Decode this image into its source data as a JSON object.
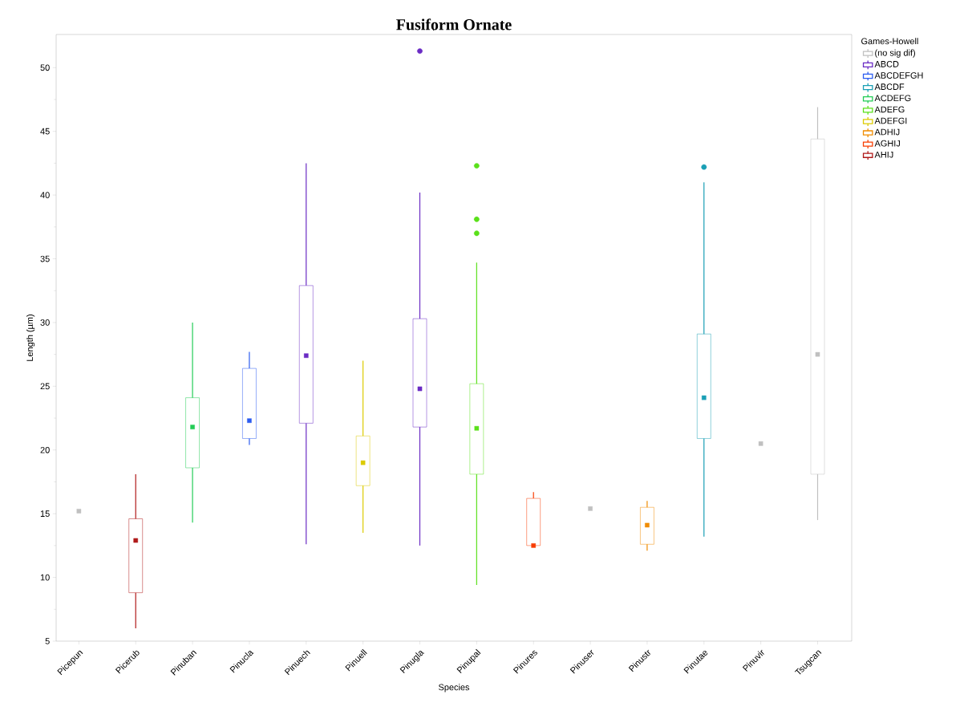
{
  "chart_data": {
    "type": "box",
    "title": "Fusiform Ornate",
    "xlabel": "Species",
    "ylabel": "Length (µm)",
    "legend_title": "Games-Howell",
    "legend": "right",
    "categories": [
      "Picepun",
      "Picerub",
      "Pinuban",
      "Pinucla",
      "Pinuech",
      "Pinuell",
      "Pinugla",
      "Pinupal",
      "Pinures",
      "Pinuser",
      "Pinustr",
      "Pinutae",
      "Pinuvir",
      "Tsugcan"
    ],
    "ylim": [
      5,
      52.6
    ],
    "yticks": [
      5,
      10,
      15,
      20,
      25,
      30,
      35,
      40,
      45,
      50
    ],
    "series": [
      {
        "name": "(no sig dif)",
        "color": "#c0c0c0",
        "boxes": [
          {
            "low": 15.2,
            "q1": 15.2,
            "median": 15.2,
            "q3": 15.2,
            "high": 15.2
          },
          null,
          null,
          null,
          null,
          null,
          null,
          null,
          null,
          {
            "low": 15.4,
            "q1": 15.4,
            "median": 15.4,
            "q3": 15.4,
            "high": 15.4
          },
          null,
          null,
          {
            "low": 20.5,
            "q1": 20.5,
            "median": 20.5,
            "q3": 20.5,
            "high": 20.5
          },
          {
            "low": 14.5,
            "q1": 18.1,
            "median": 27.5,
            "q3": 44.4,
            "high": 46.9
          }
        ]
      },
      {
        "name": "ABCD",
        "color": "#6a2bc4",
        "boxes": [
          null,
          null,
          null,
          null,
          {
            "low": 12.6,
            "q1": 22.1,
            "median": 27.4,
            "q3": 32.9,
            "high": 42.5
          },
          null,
          {
            "low": 12.5,
            "q1": 21.8,
            "median": 24.8,
            "q3": 30.3,
            "high": 40.2,
            "outliers": [
              51.3
            ]
          },
          null,
          null,
          null,
          null,
          null,
          null,
          null
        ]
      },
      {
        "name": "ABCDEFGH",
        "color": "#2b5cf0",
        "boxes": [
          null,
          null,
          null,
          {
            "low": 20.4,
            "q1": 20.9,
            "median": 22.3,
            "q3": 26.4,
            "high": 27.7
          },
          null,
          null,
          null,
          null,
          null,
          null,
          null,
          null,
          null,
          null
        ]
      },
      {
        "name": "ABCDF",
        "color": "#1a9fb5",
        "boxes": [
          null,
          null,
          null,
          null,
          null,
          null,
          null,
          null,
          null,
          null,
          null,
          {
            "low": 13.2,
            "q1": 20.9,
            "median": 24.1,
            "q3": 29.1,
            "high": 41.0,
            "outliers": [
              42.2
            ]
          },
          null,
          null
        ]
      },
      {
        "name": "ACDEFG",
        "color": "#22cc55",
        "boxes": [
          null,
          null,
          {
            "low": 14.3,
            "q1": 18.6,
            "median": 21.8,
            "q3": 24.1,
            "high": 30.0
          },
          null,
          null,
          null,
          null,
          null,
          null,
          null,
          null,
          null,
          null,
          null
        ]
      },
      {
        "name": "ADEFG",
        "color": "#5ae01a",
        "boxes": [
          null,
          null,
          null,
          null,
          null,
          null,
          null,
          {
            "low": 9.4,
            "q1": 18.1,
            "median": 21.7,
            "q3": 25.2,
            "high": 34.7,
            "outliers": [
              42.3,
              38.1,
              37.0
            ]
          },
          null,
          null,
          null,
          null,
          null,
          null
        ]
      },
      {
        "name": "ADEFGI",
        "color": "#dccb00",
        "boxes": [
          null,
          null,
          null,
          null,
          null,
          {
            "low": 13.5,
            "q1": 17.2,
            "median": 19.0,
            "q3": 21.1,
            "high": 27.0
          },
          null,
          null,
          null,
          null,
          null,
          null,
          null,
          null
        ]
      },
      {
        "name": "ADHIJ",
        "color": "#f08c00",
        "boxes": [
          null,
          null,
          null,
          null,
          null,
          null,
          null,
          null,
          null,
          null,
          {
            "low": 12.1,
            "q1": 12.6,
            "median": 14.1,
            "q3": 15.5,
            "high": 16.0
          },
          null,
          null,
          null
        ]
      },
      {
        "name": "AGHIJ",
        "color": "#f83c00",
        "boxes": [
          null,
          null,
          null,
          null,
          null,
          null,
          null,
          null,
          {
            "low": 12.5,
            "q1": 12.5,
            "median": 12.5,
            "q3": 16.2,
            "high": 16.7
          },
          null,
          null,
          null,
          null,
          null
        ]
      },
      {
        "name": "AHIJ",
        "color": "#b01a1a",
        "boxes": [
          null,
          {
            "low": 6.0,
            "q1": 8.8,
            "median": 12.9,
            "q3": 14.6,
            "high": 18.1
          },
          null,
          null,
          null,
          null,
          null,
          null,
          null,
          null,
          null,
          null,
          null,
          null
        ]
      }
    ]
  }
}
